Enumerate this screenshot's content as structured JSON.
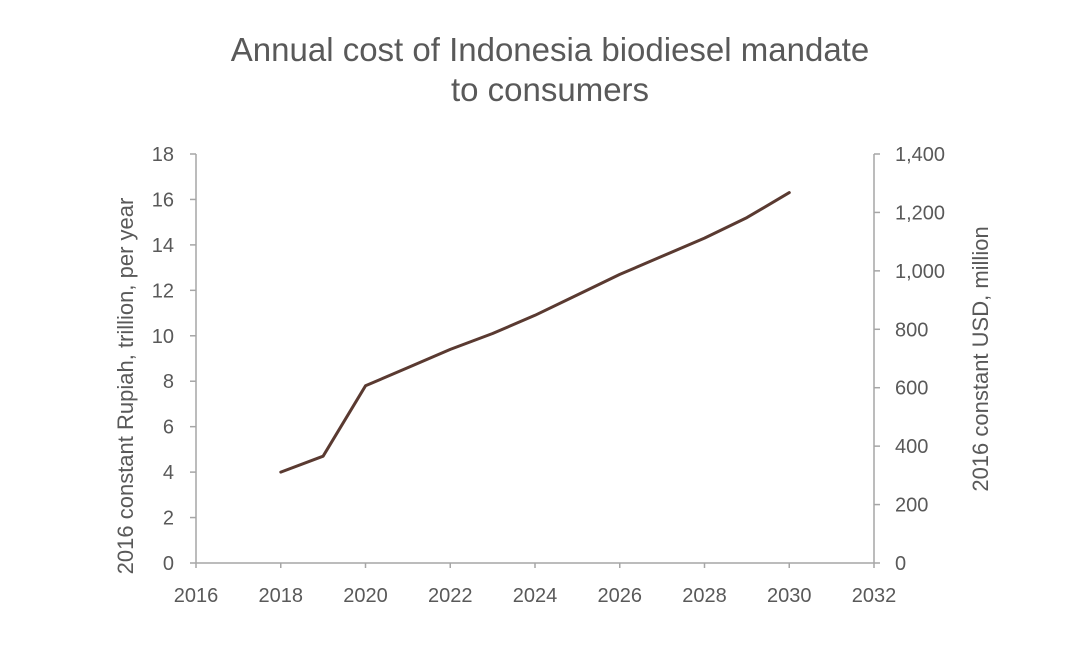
{
  "chart_data": {
    "type": "line",
    "title_lines": [
      "Annual cost of Indonesia biodiesel mandate",
      "to consumers"
    ],
    "ylabel": "2016 constant Rupiah, trillion, per year",
    "y2label": "2016 constant USD, million",
    "xlim": [
      2016,
      2032
    ],
    "ylim": [
      0,
      18
    ],
    "y2lim": [
      0,
      1400
    ],
    "x_ticks": [
      2016,
      2018,
      2020,
      2022,
      2024,
      2026,
      2028,
      2030,
      2032
    ],
    "y_ticks": [
      0,
      2,
      4,
      6,
      8,
      10,
      12,
      14,
      16,
      18
    ],
    "y2_ticks": [
      0,
      200,
      400,
      600,
      800,
      1000,
      1200,
      1400
    ],
    "y2_tick_labels": [
      "0",
      "200",
      "400",
      "600",
      "800",
      "1,000",
      "1,200",
      "1,400"
    ],
    "grid": false,
    "series": [
      {
        "color": "#5a3a31",
        "x": [
          2018,
          2019,
          2020,
          2021,
          2022,
          2023,
          2024,
          2025,
          2026,
          2027,
          2028,
          2029,
          2030
        ],
        "y": [
          4.0,
          4.7,
          7.8,
          8.6,
          9.4,
          10.1,
          10.9,
          11.8,
          12.7,
          13.5,
          14.3,
          15.2,
          16.3
        ]
      }
    ]
  }
}
